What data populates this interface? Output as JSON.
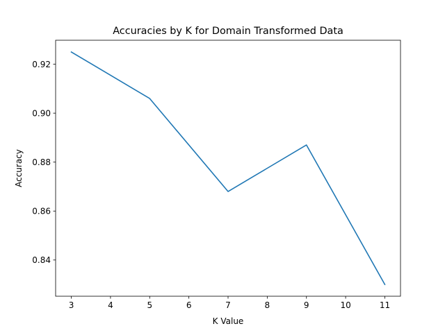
{
  "chart_data": {
    "type": "line",
    "title": "Accuracies by K for Domain Transformed Data",
    "xlabel": "K Value",
    "ylabel": "Accuracy",
    "x": [
      3,
      5,
      7,
      9,
      11
    ],
    "series": [
      {
        "values": [
          0.925,
          0.906,
          0.868,
          0.887,
          0.83
        ],
        "color": "#1f77b4"
      }
    ],
    "xlim": [
      2.6,
      11.4
    ],
    "ylim": [
      0.8252,
      0.9298
    ],
    "xticks": [
      3,
      4,
      5,
      6,
      7,
      8,
      9,
      10,
      11
    ],
    "xtick_labels": [
      "3",
      "4",
      "5",
      "6",
      "7",
      "8",
      "9",
      "10",
      "11"
    ],
    "yticks": [
      0.84,
      0.86,
      0.88,
      0.9,
      0.92
    ],
    "ytick_labels": [
      "0.84",
      "0.86",
      "0.88",
      "0.90",
      "0.92"
    ],
    "grid": false,
    "legend": "none"
  }
}
